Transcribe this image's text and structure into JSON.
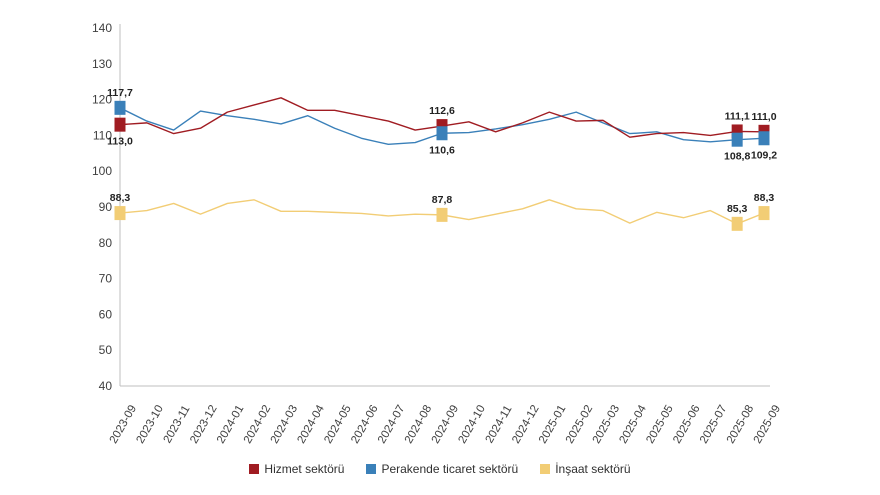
{
  "chart_data": {
    "type": "line",
    "categories": [
      "2023-09",
      "2023-10",
      "2023-11",
      "2023-12",
      "2024-01",
      "2024-02",
      "2024-03",
      "2024-04",
      "2024-05",
      "2024-06",
      "2024-07",
      "2024-08",
      "2024-09",
      "2024-10",
      "2024-11",
      "2024-12",
      "2025-01",
      "2025-02",
      "2025-03",
      "2025-04",
      "2025-05",
      "2025-06",
      "2025-07",
      "2025-08",
      "2025-09"
    ],
    "ylim": [
      40,
      140
    ],
    "yticks": [
      40,
      50,
      60,
      70,
      80,
      90,
      100,
      110,
      120,
      130,
      140
    ],
    "grid": false,
    "legend_position": "bottom",
    "series": [
      {
        "name": "Hizmet sektörü",
        "color": "#a01c22",
        "values": [
          113.0,
          113.5,
          110.5,
          112.0,
          116.5,
          118.5,
          120.5,
          117.0,
          117.0,
          115.5,
          114.0,
          111.5,
          112.6,
          113.8,
          111.0,
          113.5,
          116.5,
          114.0,
          114.2,
          109.5,
          110.5,
          110.8,
          110.0,
          111.1,
          111.0
        ],
        "labels": [
          {
            "i": 0,
            "text": "113,0",
            "pos": "below"
          },
          {
            "i": 12,
            "text": "112,6",
            "pos": "above"
          },
          {
            "i": 23,
            "text": "111,1",
            "pos": "above"
          },
          {
            "i": 24,
            "text": "111,0",
            "pos": "above"
          }
        ]
      },
      {
        "name": "Perakende ticaret sektörü",
        "color": "#3a80b9",
        "values": [
          117.7,
          114.0,
          111.5,
          116.8,
          115.5,
          114.5,
          113.2,
          115.5,
          112.0,
          109.2,
          107.5,
          108.0,
          110.6,
          110.8,
          111.8,
          113.0,
          114.5,
          116.5,
          113.5,
          110.5,
          111.0,
          108.8,
          108.2,
          108.8,
          109.2
        ],
        "labels": [
          {
            "i": 0,
            "text": "117,7",
            "pos": "above"
          },
          {
            "i": 12,
            "text": "110,6",
            "pos": "below"
          },
          {
            "i": 23,
            "text": "108,8",
            "pos": "below"
          },
          {
            "i": 24,
            "text": "109,2",
            "pos": "below"
          }
        ]
      },
      {
        "name": "İnşaat sektörü",
        "color": "#f2cd75",
        "values": [
          88.3,
          89.0,
          91.0,
          88.0,
          91.0,
          92.0,
          88.8,
          88.8,
          88.5,
          88.2,
          87.5,
          88.0,
          87.8,
          86.5,
          88.0,
          89.5,
          92.0,
          89.5,
          89.0,
          85.5,
          88.5,
          87.0,
          89.0,
          85.3,
          88.3
        ],
        "labels": [
          {
            "i": 0,
            "text": "88,3",
            "pos": "above"
          },
          {
            "i": 12,
            "text": "87,8",
            "pos": "above"
          },
          {
            "i": 23,
            "text": "85,3",
            "pos": "above"
          },
          {
            "i": 24,
            "text": "88,3",
            "pos": "above"
          }
        ]
      }
    ]
  }
}
